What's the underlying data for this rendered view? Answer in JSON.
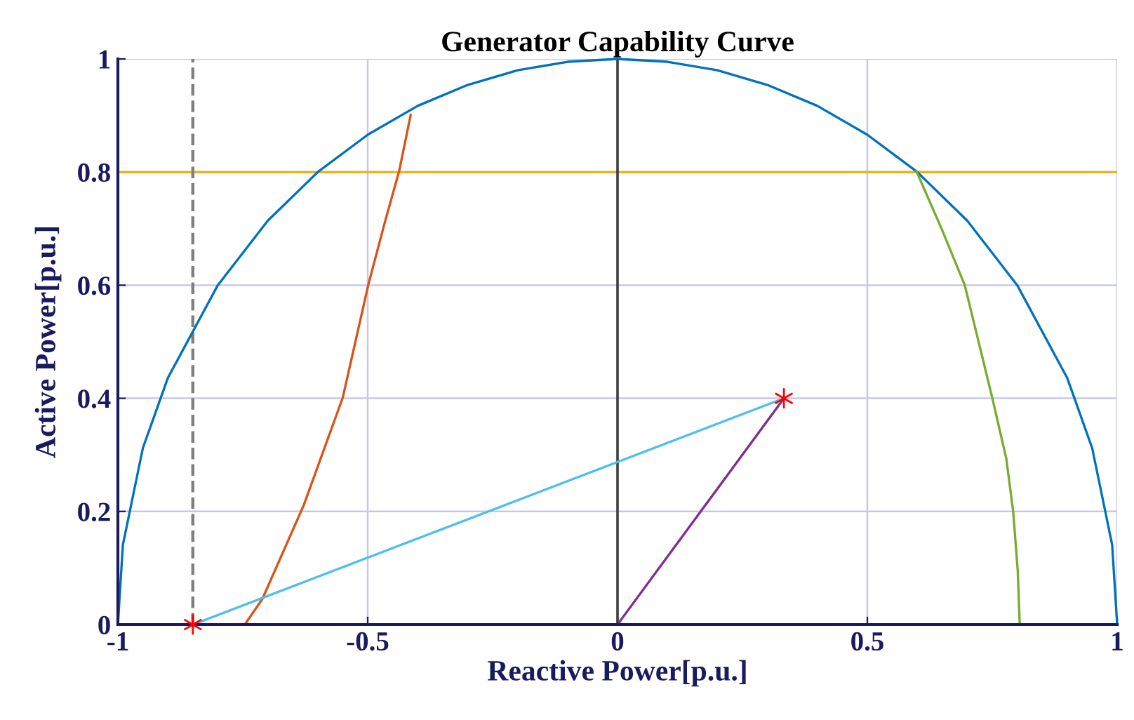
{
  "chart_data": {
    "type": "line",
    "title": "Generator Capability Curve",
    "xlabel": "Reactive Power[p.u.]",
    "ylabel": "Active Power[p.u.]",
    "xlim": [
      -1,
      1
    ],
    "ylim": [
      0,
      1
    ],
    "xticks": [
      -1,
      -0.5,
      0,
      0.5,
      1
    ],
    "yticks": [
      0,
      0.2,
      0.4,
      0.6,
      0.8,
      1
    ],
    "grid": true,
    "line_style": "solid",
    "marker": "none",
    "series": [
      {
        "color": "#0072bd",
        "x": [
          -1,
          -0.99,
          -0.95,
          -0.9,
          -0.8,
          -0.7,
          -0.6,
          -0.5,
          -0.4,
          -0.3,
          -0.2,
          -0.1,
          0,
          0.1,
          0.2,
          0.3,
          0.4,
          0.5,
          0.6,
          0.7,
          0.8,
          0.9,
          0.95,
          0.99,
          1
        ],
        "values": [
          0,
          0.141,
          0.312,
          0.436,
          0.6,
          0.714,
          0.8,
          0.866,
          0.917,
          0.954,
          0.98,
          0.995,
          1,
          0.995,
          0.98,
          0.954,
          0.917,
          0.866,
          0.8,
          0.714,
          0.6,
          0.436,
          0.312,
          0.141,
          0
        ]
      },
      {
        "color": "#d95319",
        "x": [
          -0.746,
          -0.711,
          -0.628,
          -0.55,
          -0.499,
          -0.467,
          -0.437,
          -0.414
        ],
        "values": [
          0,
          0.045,
          0.211,
          0.401,
          0.6,
          0.707,
          0.802,
          0.901
        ]
      },
      {
        "color": "#77ac30",
        "x": [
          0.598,
          0.649,
          0.695,
          0.75,
          0.778,
          0.792,
          0.801,
          0.805
        ],
        "values": [
          0.802,
          0.699,
          0.6,
          0.401,
          0.294,
          0.199,
          0.095,
          0
        ]
      },
      {
        "color": "#4dbeee",
        "x": [
          -0.85,
          0.333
        ],
        "values": [
          0,
          0.4
        ]
      },
      {
        "color": "#7e2f8e",
        "x": [
          0,
          0.333
        ],
        "values": [
          0,
          0.4
        ]
      },
      {
        "type": "scatter",
        "color": "#ff0000",
        "marker": "cross",
        "x": [
          -0.85,
          0.333
        ],
        "values": [
          0,
          0.4
        ]
      }
    ],
    "ref_lines": [
      {
        "axis": "y",
        "value": 0.8,
        "color": "#edb120",
        "line_style": "solid"
      },
      {
        "axis": "x",
        "value": 0,
        "color": "#404040",
        "line_style": "solid"
      },
      {
        "axis": "x",
        "value": -0.85,
        "color": "#808080",
        "line_style": "dashed"
      }
    ]
  }
}
